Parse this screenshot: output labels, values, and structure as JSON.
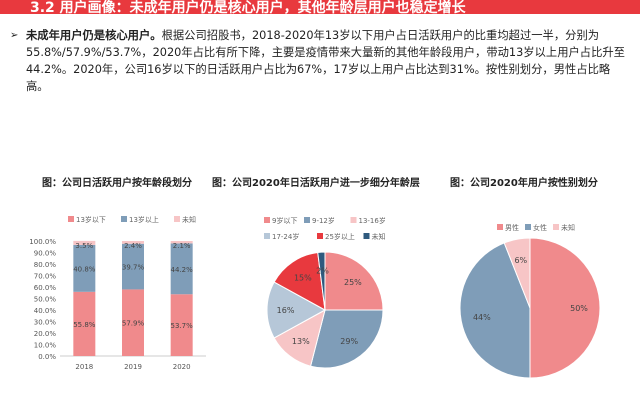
{
  "header": {
    "title": "3.2 用户画像：未成年用户仍是核心用户，其他年龄层用户也稳定增长"
  },
  "paragraph": {
    "lead": "未成年用户仍是核心用户。",
    "body": "根据公司招股书，2018-2020年13岁以下用户占日活跃用户的比重均超过一半，分别为55.8%/57.9%/53.7%，2020年占比有所下降，主要是疫情带来大量新的其他年龄段用户，带动13岁以上用户占比升至44.2%。2020年，公司16岁以下的日活跃用户占比为67%，17岁以上用户占比达到31%。按性别划分，男性占比略高。"
  },
  "chart_data": [
    {
      "type": "bar",
      "stacked": true,
      "title": "图：公司日活跃用户按年龄段划分",
      "categories": [
        "2018",
        "2019",
        "2020"
      ],
      "series": [
        {
          "name": "13岁以下",
          "color": "#f08a8c",
          "values": [
            55.8,
            57.9,
            53.7
          ],
          "labels": [
            "55.8%",
            "57.9%",
            "53.7%"
          ]
        },
        {
          "name": "13岁以上",
          "color": "#7f9db8",
          "values": [
            40.8,
            39.7,
            44.2
          ],
          "labels": [
            "40.8%",
            "39.7%",
            "44.2%"
          ]
        },
        {
          "name": "未知",
          "color": "#f7c5c6",
          "values": [
            3.5,
            2.4,
            2.1
          ],
          "labels": [
            "3.5%",
            "2.4%",
            "2.1%"
          ]
        }
      ],
      "ylim": [
        0,
        100
      ],
      "yticks": [
        "0.0%",
        "10.0%",
        "20.0%",
        "30.0%",
        "40.0%",
        "50.0%",
        "60.0%",
        "70.0%",
        "80.0%",
        "90.0%",
        "100.0%"
      ],
      "grid": false,
      "legend": "top"
    },
    {
      "type": "pie",
      "title": "图：公司2020年日活跃用户进一步细分年龄层",
      "slices": [
        {
          "name": "9岁以下",
          "value": 25,
          "label": "25%",
          "color": "#f08a8c"
        },
        {
          "name": "9-12岁",
          "value": 29,
          "label": "29%",
          "color": "#7f9db8"
        },
        {
          "name": "13-16岁",
          "value": 13,
          "label": "13%",
          "color": "#f7c5c6"
        },
        {
          "name": "17-24岁",
          "value": 16,
          "label": "16%",
          "color": "#b6c7d8"
        },
        {
          "name": "25岁以上",
          "value": 15,
          "label": "15%",
          "color": "#e8393e"
        },
        {
          "name": "未知",
          "value": 2,
          "label": "2%",
          "color": "#2f5a7e"
        }
      ],
      "legend": "top"
    },
    {
      "type": "pie",
      "title": "图：公司2020年用户按性别划分",
      "slices": [
        {
          "name": "男性",
          "value": 50,
          "label": "50%",
          "color": "#f08a8c"
        },
        {
          "name": "女性",
          "value": 44,
          "label": "44%",
          "color": "#7f9db8"
        },
        {
          "name": "未知",
          "value": 6,
          "label": "6%",
          "color": "#f7c5c6"
        }
      ],
      "legend": "top"
    }
  ]
}
